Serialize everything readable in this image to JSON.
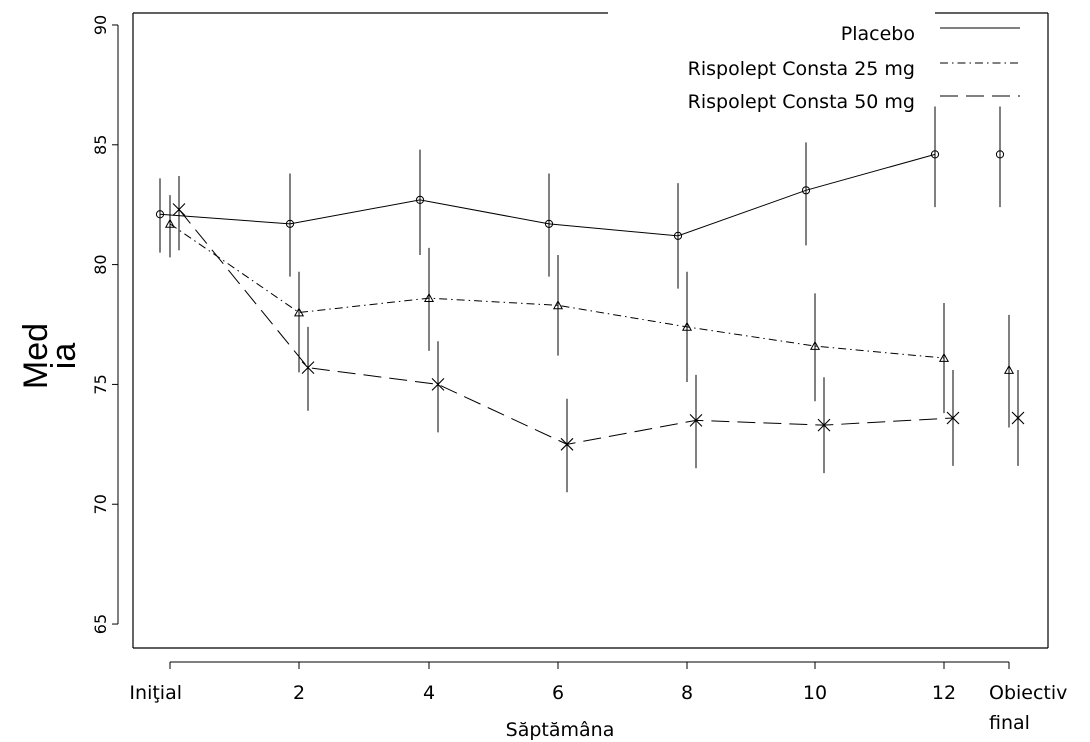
{
  "chart_data": {
    "type": "line",
    "xlabel": "Săptămâna",
    "ylabel_lines": [
      "Med",
      "ia"
    ],
    "x_categories": [
      "Iniţial",
      "2",
      "4",
      "6",
      "8",
      "10",
      "12",
      "Obiectiv final"
    ],
    "x_tick_lines": [
      [
        "Iniţial"
      ],
      [
        "2"
      ],
      [
        "4"
      ],
      [
        "6"
      ],
      [
        "8"
      ],
      [
        "10"
      ],
      [
        "12"
      ],
      [
        "Obiectiv",
        "final"
      ]
    ],
    "ylim": [
      64,
      90.5
    ],
    "yticks": [
      65,
      70,
      75,
      80,
      85,
      90
    ],
    "grid": false,
    "legend_position": "top-right",
    "error_bars": true,
    "series": [
      {
        "name": "Placebo",
        "line_style": "solid",
        "marker": "circle",
        "values": [
          82.1,
          81.7,
          82.7,
          81.7,
          81.2,
          83.1,
          84.6,
          84.6
        ],
        "err_low": [
          80.5,
          79.5,
          80.4,
          79.5,
          79.0,
          80.8,
          82.4,
          82.4
        ],
        "err_high": [
          83.6,
          83.8,
          84.8,
          83.8,
          83.4,
          85.1,
          86.6,
          86.6
        ]
      },
      {
        "name": "Rispolept Consta 25 mg",
        "line_style": "dash-dot",
        "marker": "triangle",
        "values": [
          81.7,
          78.0,
          78.6,
          78.3,
          77.4,
          76.6,
          76.1,
          75.6
        ],
        "err_low": [
          80.3,
          75.5,
          76.4,
          76.2,
          75.1,
          74.3,
          73.8,
          73.2
        ],
        "err_high": [
          82.9,
          79.7,
          80.7,
          80.4,
          79.7,
          78.8,
          78.4,
          77.9
        ]
      },
      {
        "name": "Rispolept Consta 50 mg",
        "line_style": "dashed",
        "marker": "x",
        "values": [
          82.3,
          75.7,
          75.0,
          72.5,
          73.5,
          73.3,
          73.6,
          73.6
        ],
        "err_low": [
          80.6,
          73.9,
          73.0,
          70.5,
          71.5,
          71.3,
          71.6,
          71.6
        ],
        "err_high": [
          83.7,
          77.4,
          76.8,
          74.4,
          75.4,
          75.3,
          75.6,
          75.6
        ]
      }
    ]
  }
}
